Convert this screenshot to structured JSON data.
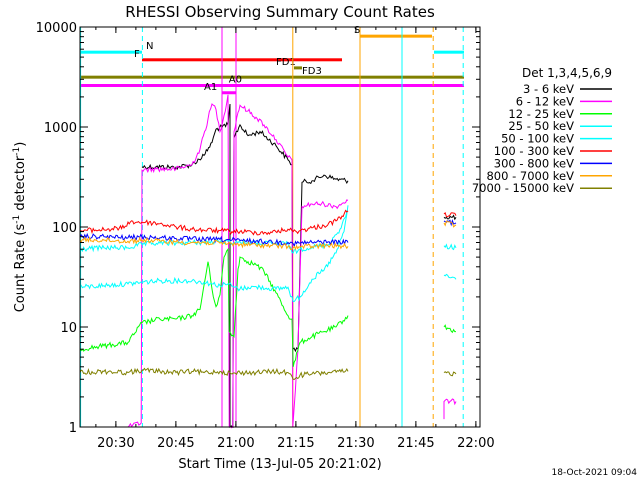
{
  "chart_data": {
    "type": "line",
    "title": "RHESSI Observing Summary Count Rates",
    "xlabel": "Start Time (13-Jul-05 20:21:02)",
    "ylabel_main": "Count Rate (s",
    "ylabel_sup1": "-1",
    "ylabel_mid": " detector",
    "ylabel_sup2": "-1",
    "ylabel_end": ")",
    "footer": "18-Oct-2021 09:04",
    "x_unit": "minutes after 20:21:02",
    "xlim": [
      0,
      100
    ],
    "yscale": "log",
    "ylim": [
      1,
      10000
    ],
    "x_ticks": [
      {
        "label": "20:30",
        "value": 8.97
      },
      {
        "label": "20:45",
        "value": 23.97
      },
      {
        "label": "21:00",
        "value": 38.97
      },
      {
        "label": "21:15",
        "value": 53.97
      },
      {
        "label": "21:30",
        "value": 68.97
      },
      {
        "label": "21:45",
        "value": 83.97
      },
      {
        "label": "22:00",
        "value": 98.97
      }
    ],
    "y_ticks": [
      {
        "label": "1",
        "value": 1
      },
      {
        "label": "10",
        "value": 10
      },
      {
        "label": "100",
        "value": 100
      },
      {
        "label": "1000",
        "value": 1000
      },
      {
        "label": "10000",
        "value": 10000
      }
    ],
    "legend_title": "Det 1,3,4,5,6,9",
    "series": [
      {
        "name": "3 - 6 keV",
        "color": "#000000",
        "points": [
          [
            15.5,
            400
          ],
          [
            19,
            400
          ],
          [
            24,
            395
          ],
          [
            28,
            420
          ],
          [
            31,
            520
          ],
          [
            33,
            700
          ],
          [
            34,
            950
          ],
          [
            35.5,
            1000
          ],
          [
            37,
            1050
          ],
          [
            37.5,
            1700
          ],
          [
            37.5,
            1
          ],
          [
            38.2,
            1
          ],
          [
            38.5,
            780
          ],
          [
            40,
            1050
          ],
          [
            42,
            820
          ],
          [
            45,
            900
          ],
          [
            49,
            650
          ],
          [
            52,
            470
          ],
          [
            53,
            420
          ],
          [
            53.2,
            6
          ],
          [
            54.5,
            6
          ],
          [
            55.5,
            280
          ],
          [
            58,
            290
          ],
          [
            61,
            330
          ],
          [
            64,
            300
          ],
          [
            67,
            290
          ]
        ],
        "tail": [
          [
            91,
            125
          ],
          [
            94,
            125
          ]
        ]
      },
      {
        "name": "6 - 12 keV",
        "color": "#ff00ff",
        "points": [
          [
            12,
            1
          ],
          [
            15.3,
            1.1
          ],
          [
            15.5,
            370
          ],
          [
            19,
            380
          ],
          [
            24,
            380
          ],
          [
            28,
            420
          ],
          [
            30,
            600
          ],
          [
            32,
            1200
          ],
          [
            33,
            1700
          ],
          [
            34,
            1500
          ],
          [
            35,
            900
          ],
          [
            36,
            1300
          ],
          [
            37,
            2100
          ],
          [
            37.3,
            1
          ],
          [
            38.2,
            1
          ],
          [
            38.5,
            900
          ],
          [
            39.5,
            1400
          ],
          [
            40,
            1650
          ],
          [
            42,
            1450
          ],
          [
            44,
            1250
          ],
          [
            46,
            1050
          ],
          [
            49,
            750
          ],
          [
            52,
            500
          ],
          [
            53,
            470
          ],
          [
            53.2,
            1
          ],
          [
            54.5,
            6
          ],
          [
            55.5,
            160
          ],
          [
            58,
            170
          ],
          [
            61,
            170
          ],
          [
            64,
            160
          ],
          [
            67,
            185
          ]
        ],
        "tail": [
          [
            91,
            1.2
          ],
          [
            91,
            1.8
          ],
          [
            94,
            1.8
          ]
        ]
      },
      {
        "name": "12 - 25 keV",
        "color": "#00ff00",
        "points": [
          [
            0,
            6
          ],
          [
            6,
            6.5
          ],
          [
            12,
            7
          ],
          [
            15.5,
            11
          ],
          [
            20,
            12
          ],
          [
            24,
            12
          ],
          [
            28,
            13
          ],
          [
            30,
            15
          ],
          [
            32,
            45
          ],
          [
            33,
            24
          ],
          [
            34,
            16
          ],
          [
            35,
            21
          ],
          [
            36,
            50
          ],
          [
            37,
            60
          ],
          [
            37.3,
            9
          ],
          [
            38.5,
            8
          ],
          [
            39.5,
            38
          ],
          [
            40,
            50
          ],
          [
            42,
            45
          ],
          [
            44,
            42
          ],
          [
            46,
            36
          ],
          [
            49,
            22
          ],
          [
            52,
            13
          ],
          [
            53,
            12
          ],
          [
            53.3,
            4
          ],
          [
            55,
            7
          ],
          [
            58,
            8
          ],
          [
            61,
            9
          ],
          [
            64,
            10
          ],
          [
            67,
            13
          ]
        ],
        "tail": [
          [
            91,
            10
          ],
          [
            94,
            9
          ]
        ]
      },
      {
        "name": "25 - 50 keV",
        "color": "#00ffff",
        "points": [
          [
            0,
            25
          ],
          [
            6,
            26
          ],
          [
            12,
            27
          ],
          [
            15.5,
            28
          ],
          [
            20,
            29
          ],
          [
            24,
            29
          ],
          [
            28,
            29
          ],
          [
            31,
            28
          ],
          [
            33,
            27
          ],
          [
            35,
            26
          ],
          [
            37,
            27
          ],
          [
            38.5,
            25
          ],
          [
            40,
            24
          ],
          [
            42,
            25
          ],
          [
            45,
            25
          ],
          [
            49,
            24
          ],
          [
            52,
            25
          ],
          [
            53.3,
            18
          ],
          [
            55,
            20
          ],
          [
            58,
            30
          ],
          [
            61,
            37
          ],
          [
            64,
            55
          ],
          [
            66,
            90
          ],
          [
            67,
            165
          ]
        ],
        "tail": [
          [
            91,
            33
          ],
          [
            94,
            30
          ]
        ]
      },
      {
        "name": "50 - 100 keV",
        "color": "#00ffff",
        "points": [
          [
            0,
            60
          ],
          [
            6,
            62
          ],
          [
            12,
            62
          ],
          [
            15.5,
            67
          ],
          [
            20,
            69
          ],
          [
            24,
            69
          ],
          [
            28,
            70
          ],
          [
            31,
            70
          ],
          [
            35,
            71
          ],
          [
            37,
            72
          ],
          [
            38.5,
            70
          ],
          [
            40,
            71
          ],
          [
            44,
            69
          ],
          [
            48,
            68
          ],
          [
            52,
            68
          ],
          [
            53.3,
            55
          ],
          [
            55,
            60
          ],
          [
            58,
            63
          ],
          [
            62,
            66
          ],
          [
            65,
            95
          ],
          [
            67,
            145
          ]
        ],
        "tail": [
          [
            91,
            65
          ],
          [
            94,
            62
          ]
        ]
      },
      {
        "name": "100 - 300 keV",
        "color": "#ff0000",
        "points": [
          [
            0,
            92
          ],
          [
            6,
            94
          ],
          [
            11,
            98
          ],
          [
            12,
            112
          ],
          [
            15.5,
            112
          ],
          [
            20,
            108
          ],
          [
            24,
            100
          ],
          [
            28,
            95
          ],
          [
            31,
            93
          ],
          [
            35,
            92
          ],
          [
            38,
            90
          ],
          [
            40,
            90
          ],
          [
            44,
            88
          ],
          [
            48,
            88
          ],
          [
            52,
            95
          ],
          [
            53.3,
            90
          ],
          [
            55,
            92
          ],
          [
            58,
            98
          ],
          [
            61,
            103
          ],
          [
            64,
            115
          ],
          [
            67,
            145
          ]
        ],
        "tail": [
          [
            91,
            135
          ],
          [
            94,
            130
          ]
        ]
      },
      {
        "name": "300 - 800 keV",
        "color": "#0000ff",
        "points": [
          [
            0,
            80
          ],
          [
            6,
            80
          ],
          [
            12,
            78
          ],
          [
            15.5,
            80
          ],
          [
            20,
            78
          ],
          [
            24,
            77
          ],
          [
            28,
            76
          ],
          [
            31,
            75
          ],
          [
            35,
            75
          ],
          [
            38,
            74
          ],
          [
            40,
            73
          ],
          [
            44,
            72
          ],
          [
            48,
            71
          ],
          [
            52,
            70
          ],
          [
            53.3,
            68
          ],
          [
            55,
            69
          ],
          [
            58,
            70
          ],
          [
            62,
            71
          ],
          [
            67,
            70
          ]
        ],
        "tail": [
          [
            91,
            115
          ],
          [
            94,
            110
          ]
        ]
      },
      {
        "name": "800 - 7000 keV",
        "color": "#ffa500",
        "points": [
          [
            0,
            74
          ],
          [
            6,
            74
          ],
          [
            12,
            72
          ],
          [
            15.5,
            74
          ],
          [
            20,
            72
          ],
          [
            24,
            71
          ],
          [
            28,
            70
          ],
          [
            31,
            70
          ],
          [
            35,
            69
          ],
          [
            38,
            68
          ],
          [
            40,
            67
          ],
          [
            44,
            66
          ],
          [
            48,
            65
          ],
          [
            52,
            64
          ],
          [
            53.3,
            62
          ],
          [
            55,
            63
          ],
          [
            58,
            64
          ],
          [
            62,
            65
          ],
          [
            67,
            64
          ]
        ],
        "tail": [
          [
            91,
            110
          ],
          [
            94,
            105
          ]
        ]
      },
      {
        "name": "7000 - 15000 keV",
        "color": "#808000",
        "points": [
          [
            0,
            3.5
          ],
          [
            6,
            3.6
          ],
          [
            12,
            3.5
          ],
          [
            15.5,
            3.7
          ],
          [
            20,
            3.6
          ],
          [
            24,
            3.5
          ],
          [
            28,
            3.6
          ],
          [
            31,
            3.5
          ],
          [
            35,
            3.6
          ],
          [
            38,
            3.4
          ],
          [
            40,
            3.5
          ],
          [
            44,
            3.5
          ],
          [
            48,
            3.6
          ],
          [
            52,
            3.5
          ],
          [
            53.3,
            3
          ],
          [
            55,
            3.3
          ],
          [
            58,
            3.4
          ],
          [
            62,
            3.5
          ],
          [
            67,
            3.6
          ]
        ],
        "tail": [
          [
            91,
            3.5
          ],
          [
            94,
            3.4
          ]
        ]
      }
    ],
    "flags": [
      {
        "label": "N",
        "color": "#00ffff",
        "y": 5600,
        "segments": [
          [
            0,
            15.5
          ],
          [
            88.5,
            96
          ]
        ],
        "label_x": 16.5
      },
      {
        "label": "S",
        "color": "#ffa500",
        "y": 8100,
        "segments": [
          [
            70,
            88
          ]
        ],
        "label_x": 68.5
      },
      {
        "label": "F",
        "color": "#ff0000",
        "y": 4700,
        "segments": [
          [
            15.5,
            65.5
          ]
        ],
        "label_x": 13.5
      },
      {
        "label": "FD1",
        "color": "#808000",
        "y": 3900,
        "segments": [
          [
            53.5,
            55.5
          ]
        ],
        "label_x": 49
      },
      {
        "label": "FD3",
        "color": "#808000",
        "y": 3150,
        "segments": [
          [
            0,
            96
          ]
        ],
        "label_x": 55.5
      },
      {
        "label": "A0",
        "color": "#ff00ff",
        "y": 2600,
        "segments": [
          [
            0,
            96
          ]
        ],
        "label_x": 37.2
      },
      {
        "label": "A1",
        "color": "#ff00ff",
        "y": 2200,
        "segments": [
          [
            35.5,
            39
          ]
        ],
        "label_x": 31
      }
    ],
    "vlines": [
      {
        "x": 0.15,
        "color": "#00ffff",
        "style": "solid"
      },
      {
        "x": 15.6,
        "color": "#00ffff",
        "style": "dashed"
      },
      {
        "x": 35.5,
        "color": "#ff00ff",
        "style": "solid"
      },
      {
        "x": 39,
        "color": "#ff00ff",
        "style": "solid"
      },
      {
        "x": 53.2,
        "color": "#ffa500",
        "style": "solid"
      },
      {
        "x": 70,
        "color": "#ffa500",
        "style": "solid"
      },
      {
        "x": 80.5,
        "color": "#00ffff",
        "style": "solid"
      },
      {
        "x": 88.3,
        "color": "#ffa500",
        "style": "dashed"
      },
      {
        "x": 95.8,
        "color": "#00ffff",
        "style": "dashed"
      }
    ]
  }
}
